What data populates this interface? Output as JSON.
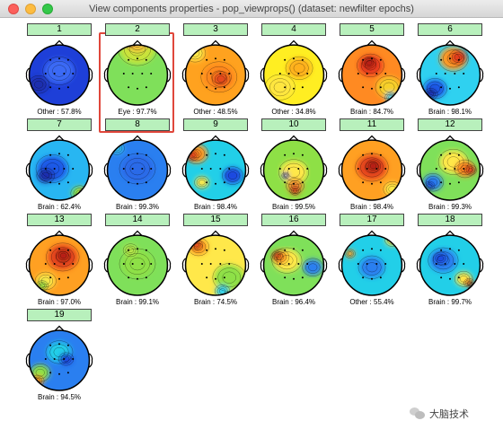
{
  "window": {
    "title": "View components properties - pop_viewprops() (dataset: newfilter epochs)"
  },
  "colors": {
    "button_bg": "#b8f0bc",
    "highlight": "#e0473b"
  },
  "components": [
    {
      "number": "1",
      "label": "Other : 57.8%",
      "bg": "#1e3fd8",
      "blobs": [
        [
          "#3b6af5",
          50,
          46,
          22
        ],
        [
          "#1a2fae",
          20,
          66,
          14
        ]
      ]
    },
    {
      "number": "2",
      "label": "Eye : 97.7%",
      "bg": "#7fe05a",
      "blobs": [
        [
          "#c8e43a",
          50,
          14,
          26
        ],
        [
          "#f2c13a",
          50,
          5,
          16
        ],
        [
          "#f29130",
          40,
          4,
          8
        ]
      ]
    },
    {
      "number": "3",
      "label": "Other : 48.5%",
      "bg": "#ffa21f",
      "blobs": [
        [
          "#ff8a1a",
          55,
          55,
          24
        ],
        [
          "#e6471e",
          58,
          58,
          12
        ],
        [
          "#ffe84a",
          20,
          20,
          14
        ]
      ]
    },
    {
      "number": "4",
      "label": "Other : 34.8%",
      "bg": "#ffee22",
      "blobs": [
        [
          "#ffb01a",
          58,
          42,
          18
        ],
        [
          "#ffe640",
          30,
          70,
          20
        ]
      ]
    },
    {
      "number": "5",
      "label": "Brain : 84.7%",
      "bg": "#ff8a22",
      "blobs": [
        [
          "#f7d02a",
          75,
          70,
          18
        ],
        [
          "#e93b1c",
          48,
          38,
          18
        ],
        [
          "#b51b12",
          46,
          34,
          9
        ],
        [
          "#3ad6f0",
          78,
          85,
          8
        ]
      ]
    },
    {
      "number": "6",
      "label": "Brain : 98.1%",
      "bg": "#2fd1f0",
      "blobs": [
        [
          "#ff9a22",
          55,
          28,
          20
        ],
        [
          "#e23a1c",
          62,
          26,
          12
        ],
        [
          "#1d5ae8",
          28,
          72,
          16
        ],
        [
          "#1a2fae",
          22,
          80,
          9
        ]
      ]
    },
    {
      "number": "7",
      "label": "Brain : 62.4%",
      "bg": "#28b6f2",
      "blobs": [
        [
          "#1e5ae8",
          40,
          50,
          22
        ],
        [
          "#1a2fae",
          30,
          60,
          12
        ],
        [
          "#8ae24a",
          80,
          86,
          12
        ],
        [
          "#ffd22a",
          86,
          84,
          6
        ]
      ]
    },
    {
      "number": "8",
      "label": "Brain : 99.3%",
      "bg": "#2a7ff0",
      "blobs": [
        [
          "#2a6ae8",
          50,
          50,
          24
        ],
        [
          "#35c0f2",
          20,
          20,
          10
        ]
      ]
    },
    {
      "number": "9",
      "label": "Brain : 98.4%",
      "bg": "#22cfe8",
      "blobs": [
        [
          "#ff9a22",
          22,
          28,
          16
        ],
        [
          "#e23a1c",
          16,
          30,
          9
        ],
        [
          "#ffe84a",
          30,
          70,
          10
        ],
        [
          "#1e4ae0",
          75,
          60,
          14
        ]
      ]
    },
    {
      "number": "10",
      "label": "Brain : 99.5%",
      "bg": "#8ee046",
      "blobs": [
        [
          "#ffe84a",
          50,
          55,
          20
        ],
        [
          "#f29130",
          52,
          75,
          12
        ],
        [
          "#e23a1c",
          52,
          82,
          7
        ],
        [
          "#1e4ae0",
          38,
          60,
          5
        ]
      ]
    },
    {
      "number": "11",
      "label": "Brain : 98.4%",
      "bg": "#ffa022",
      "blobs": [
        [
          "#e6471e",
          50,
          48,
          22
        ],
        [
          "#b51b12",
          52,
          46,
          10
        ],
        [
          "#ffe84a",
          80,
          80,
          12
        ]
      ]
    },
    {
      "number": "12",
      "label": "Brain : 99.3%",
      "bg": "#7fe05a",
      "blobs": [
        [
          "#ffe84a",
          55,
          40,
          20
        ],
        [
          "#ff8a22",
          72,
          50,
          14
        ],
        [
          "#e23a1c",
          80,
          52,
          8
        ],
        [
          "#2a7ff0",
          25,
          70,
          14
        ],
        [
          "#1e4ae0",
          20,
          75,
          7
        ]
      ]
    },
    {
      "number": "13",
      "label": "Brain : 97.0%",
      "bg": "#ffa022",
      "blobs": [
        [
          "#e6471e",
          55,
          40,
          22
        ],
        [
          "#b51b12",
          56,
          38,
          10
        ],
        [
          "#ffe84a",
          30,
          75,
          14
        ],
        [
          "#8ee046",
          25,
          82,
          8
        ]
      ]
    },
    {
      "number": "14",
      "label": "Brain : 99.1%",
      "bg": "#7fe05a",
      "blobs": [
        [
          "#8ee046",
          50,
          50,
          24
        ],
        [
          "#b8e84a",
          40,
          30,
          10
        ]
      ]
    },
    {
      "number": "15",
      "label": "Brain : 74.5%",
      "bg": "#ffe84a",
      "blobs": [
        [
          "#8ee046",
          70,
          70,
          22
        ],
        [
          "#ffa022",
          25,
          25,
          14
        ],
        [
          "#e23a1c",
          22,
          22,
          8
        ],
        [
          "#2fd1f0",
          60,
          90,
          10
        ]
      ]
    },
    {
      "number": "16",
      "label": "Brain : 96.4%",
      "bg": "#7fe05a",
      "blobs": [
        [
          "#ffe84a",
          40,
          45,
          20
        ],
        [
          "#ffa022",
          30,
          40,
          12
        ],
        [
          "#e23a1c",
          26,
          38,
          7
        ],
        [
          "#2a7ff0",
          78,
          55,
          14
        ]
      ]
    },
    {
      "number": "17",
      "label": "Other : 55.4%",
      "bg": "#22cfe8",
      "blobs": [
        [
          "#2a7ff0",
          50,
          55,
          18
        ],
        [
          "#ffe84a",
          80,
          15,
          10
        ],
        [
          "#ffa022",
          18,
          35,
          7
        ]
      ]
    },
    {
      "number": "18",
      "label": "Brain : 99.7%",
      "bg": "#22cfe8",
      "blobs": [
        [
          "#2a7ff0",
          40,
          45,
          20
        ],
        [
          "#1e4ae0",
          36,
          42,
          10
        ],
        [
          "#ffe84a",
          70,
          72,
          12
        ],
        [
          "#ff8a22",
          78,
          78,
          7
        ],
        [
          "#e23a1c",
          80,
          80,
          4
        ]
      ]
    },
    {
      "number": "19",
      "label": "Brain : 94.5%",
      "bg": "#2a7ff0",
      "blobs": [
        [
          "#22cfe8",
          50,
          40,
          18
        ],
        [
          "#8ee046",
          22,
          70,
          14
        ],
        [
          "#ffa022",
          18,
          82,
          9
        ],
        [
          "#e23a1c",
          14,
          86,
          6
        ],
        [
          "#1e4ae0",
          60,
          50,
          10
        ]
      ]
    }
  ],
  "watermark": {
    "text": "大脑技术",
    "icon": "wechat-icon"
  }
}
